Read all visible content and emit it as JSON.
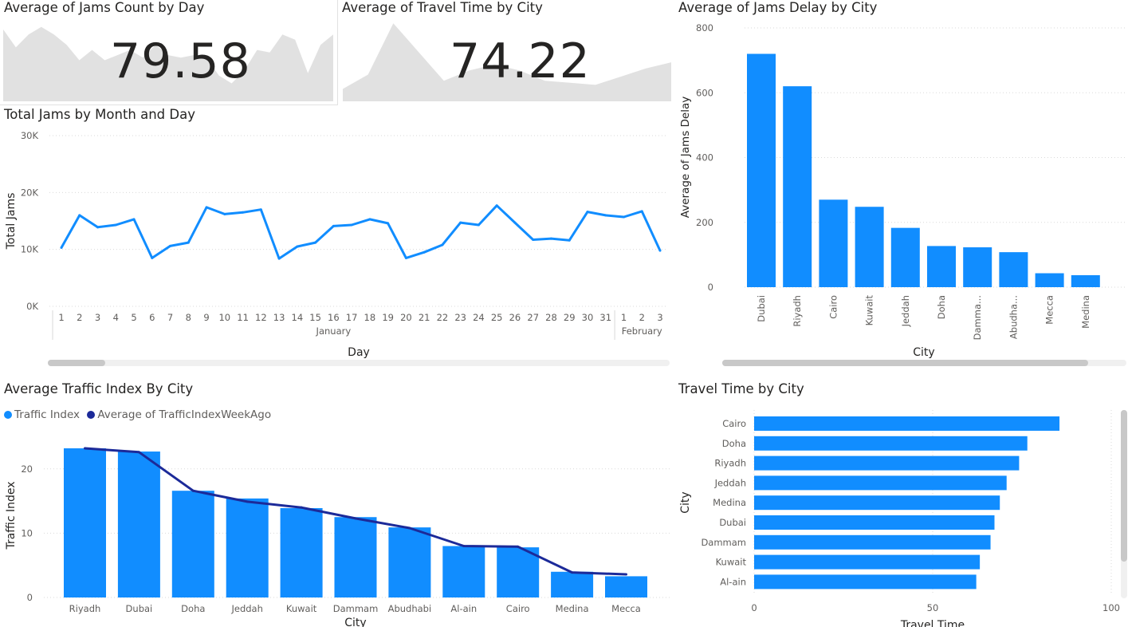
{
  "kpi_jams": {
    "title": "Average of Jams Count by Day",
    "value": "79.58"
  },
  "kpi_travel": {
    "title": "Average of Travel Time by City",
    "value": "74.22"
  },
  "line_chart": {
    "title": "Total Jams by Month and Day"
  },
  "jams_delay_chart": {
    "title": "Average of Jams Delay by City"
  },
  "traffic_chart": {
    "title": "Average Traffic Index By City",
    "legend": [
      {
        "label": "Traffic Index",
        "color": "#118dff"
      },
      {
        "label": "Average of TrafficIndexWeekAgo",
        "color": "#1c2a99"
      }
    ]
  },
  "travel_chart": {
    "title": "Travel Time by City"
  },
  "chart_data": [
    {
      "id": "jams_sparkline",
      "type": "area",
      "values": [
        28,
        21,
        26,
        29,
        26,
        22,
        16,
        20,
        16,
        18,
        20,
        17,
        22,
        18,
        17,
        18,
        17,
        10,
        7,
        12,
        20,
        19,
        26,
        24,
        11,
        22,
        26
      ],
      "ylim": [
        0,
        32
      ]
    },
    {
      "id": "travel_sparkline",
      "type": "area",
      "values": [
        66,
        73,
        98,
        84,
        70,
        75,
        78,
        75,
        70,
        69,
        68,
        72,
        76,
        79
      ],
      "ylim": [
        60,
        100
      ]
    },
    {
      "id": "total_jams_line",
      "type": "line",
      "title": "Total Jams by Month and Day",
      "xlabel": "Day",
      "ylabel": "Total Jams",
      "ylim": [
        0,
        30000
      ],
      "yticks": [
        "0K",
        "10K",
        "20K",
        "30K"
      ],
      "grid": true,
      "groups": [
        {
          "label": "January",
          "categories": [
            "1",
            "2",
            "3",
            "4",
            "5",
            "6",
            "7",
            "8",
            "9",
            "10",
            "11",
            "12",
            "13",
            "14",
            "15",
            "16",
            "17",
            "18",
            "19",
            "20",
            "21",
            "22",
            "23",
            "24",
            "25",
            "26",
            "27",
            "28",
            "29",
            "30",
            "31"
          ]
        },
        {
          "label": "February",
          "categories": [
            "1",
            "2",
            "3"
          ]
        }
      ],
      "values": [
        10300,
        16000,
        13900,
        14300,
        15300,
        8500,
        10600,
        11200,
        17400,
        16200,
        16500,
        17000,
        8400,
        10500,
        11200,
        14100,
        14300,
        15300,
        14600,
        8500,
        9500,
        10800,
        14700,
        14300,
        17700,
        14700,
        11700,
        11900,
        11600,
        16600,
        16000,
        15700,
        16700,
        9800
      ]
    },
    {
      "id": "jams_delay_bar",
      "type": "bar",
      "title": "Average of Jams Delay by City",
      "xlabel": "City",
      "ylabel": "Average of Jams Delay",
      "ylim": [
        0,
        800
      ],
      "yticks": [
        0,
        200,
        400,
        600,
        800
      ],
      "grid": true,
      "categories": [
        "Dubai",
        "Riyadh",
        "Cairo",
        "Kuwait",
        "Jeddah",
        "Doha",
        "Damma...",
        "Abudha...",
        "Mecca",
        "Medina"
      ],
      "values": [
        720,
        620,
        270,
        248,
        183,
        127,
        123,
        108,
        43,
        37
      ]
    },
    {
      "id": "traffic_index_combo",
      "type": "bar",
      "title": "Average Traffic Index By City",
      "xlabel": "City",
      "ylabel": "Traffic Index",
      "ylim": [
        0,
        25
      ],
      "yticks": [
        0,
        10,
        20
      ],
      "grid": true,
      "categories": [
        "Riyadh",
        "Dubai",
        "Doha",
        "Jeddah",
        "Kuwait",
        "Dammam",
        "Abudhabi",
        "Al-ain",
        "Cairo",
        "Medina",
        "Mecca"
      ],
      "series": [
        {
          "name": "Traffic Index",
          "type": "bar",
          "values": [
            23.2,
            22.7,
            16.6,
            15.4,
            13.9,
            12.5,
            10.9,
            8.0,
            7.8,
            4.0,
            3.3
          ]
        },
        {
          "name": "Average of TrafficIndexWeekAgo",
          "type": "line",
          "values": [
            23.2,
            22.6,
            16.6,
            14.9,
            14.0,
            12.3,
            10.8,
            8.0,
            7.9,
            3.9,
            3.6
          ]
        }
      ],
      "legend": "top-left"
    },
    {
      "id": "travel_time_hbar",
      "type": "bar",
      "orientation": "horizontal",
      "title": "Travel Time by City",
      "xlabel": "Travel Time",
      "ylabel": "City",
      "xlim": [
        0,
        100
      ],
      "xticks": [
        0,
        50,
        100
      ],
      "grid": true,
      "categories": [
        "Cairo",
        "Doha",
        "Riyadh",
        "Jeddah",
        "Medina",
        "Dubai",
        "Dammam",
        "Kuwait",
        "Al-ain"
      ],
      "values": [
        85.5,
        76.5,
        74.2,
        70.7,
        68.8,
        67.3,
        66.2,
        63.2,
        62.2
      ]
    }
  ]
}
